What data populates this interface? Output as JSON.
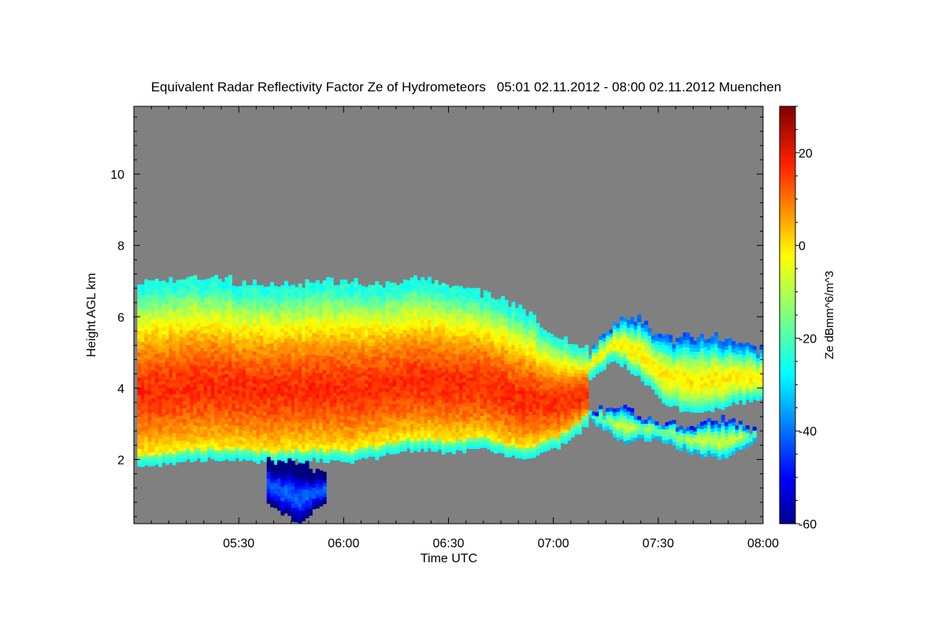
{
  "chart_data": {
    "type": "heatmap",
    "title": "Equivalent Radar Reflectivity Factor Ze of Hydrometeors",
    "subtitle": "05:01 02.11.2012 - 08:00 02.11.2012 Muenchen",
    "xlabel": "Time UTC",
    "ylabel": "Height AGL km",
    "colorbar_label": "Ze dBmm^6/m^3",
    "xlim": [
      "05:01",
      "08:00"
    ],
    "ylim": [
      0.2,
      11.9
    ],
    "zlim": [
      -60,
      30
    ],
    "x_ticks": [
      "05:30",
      "06:00",
      "06:30",
      "07:00",
      "07:30",
      "08:00"
    ],
    "y_ticks": [
      "2",
      "4",
      "6",
      "8",
      "10"
    ],
    "colorbar_ticks": [
      "-60",
      "-40",
      "-20",
      "0",
      "20"
    ],
    "background_color": "#808080",
    "colormap": "jet",
    "echo_layers": [
      {
        "name": "main_layer",
        "time_start": "05:01",
        "time_end": "07:10",
        "top_km": [
          6.9,
          7.0,
          7.1,
          6.9,
          6.8,
          6.9,
          7.0,
          6.8,
          7.0,
          6.9,
          6.6,
          6.2,
          5.5,
          5.0
        ],
        "base_km": [
          1.8,
          1.9,
          2.0,
          2.0,
          1.9,
          2.0,
          1.9,
          2.1,
          2.3,
          2.2,
          2.3,
          2.0,
          2.3,
          3.0
        ],
        "peak_ze_dbz": 15
      },
      {
        "name": "upper_layer",
        "time_start": "07:10",
        "time_end": "08:00",
        "top_km": [
          5.0,
          5.8,
          5.9,
          5.3,
          5.4,
          5.4,
          5.2,
          5.0
        ],
        "base_km": [
          4.3,
          4.8,
          4.3,
          3.6,
          3.3,
          3.4,
          3.6,
          3.7
        ],
        "peak_ze_dbz": -2
      },
      {
        "name": "lower_patches",
        "time_start": "07:10",
        "time_end": "07:58",
        "top_km": [
          3.3,
          3.4,
          3.0,
          2.9,
          3.1,
          2.7
        ],
        "base_km": [
          3.1,
          2.5,
          2.6,
          2.2,
          2.0,
          2.6
        ],
        "peak_ze_dbz": -8
      },
      {
        "name": "fall_streak",
        "time_start": "05:38",
        "time_end": "05:55",
        "top_km": [
          2.0,
          1.8,
          1.6
        ],
        "base_km": [
          0.8,
          0.2,
          0.9
        ],
        "peak_ze_dbz": -40
      }
    ]
  }
}
